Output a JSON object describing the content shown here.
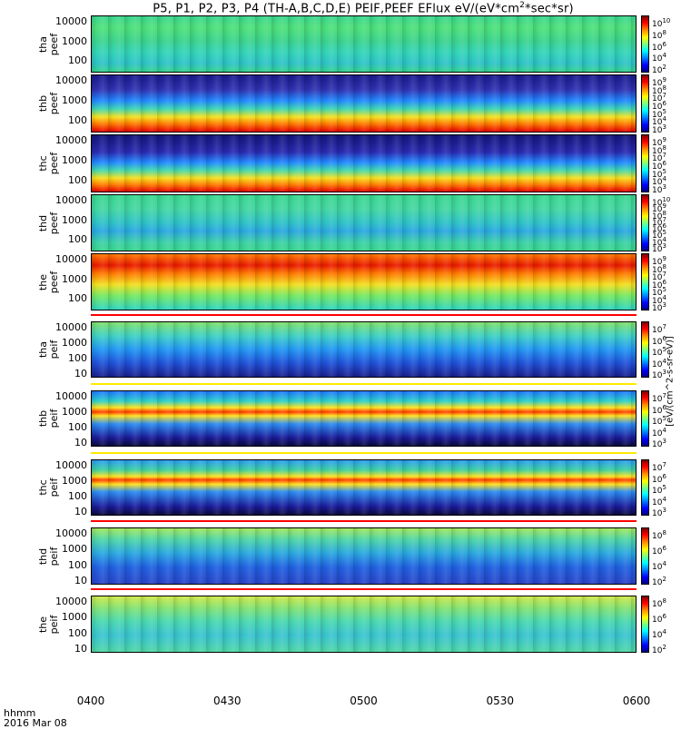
{
  "chart_data": {
    "type": "heatmap",
    "title": "P5, P1, P2, P3, P4 (TH-A,B,C,D,E) PEIF,PEEF EFlux eV/(eV*cm",
    "title_sup": "2",
    "title_tail": "*sec*sr)",
    "x_ticks": [
      "0400",
      "0430",
      "0500",
      "0530",
      "0600"
    ],
    "x_tick_values": [
      0,
      30,
      60,
      90,
      120
    ],
    "x_info_line1": "hhmm",
    "x_info_line2": "2016 Mar 08",
    "colorbar_unit_label": "[eV/(cm^2-s-sr-eV)]",
    "panels": [
      {
        "line1": "tha",
        "line2": "peef",
        "yticks": [
          "10000",
          "1000",
          "100"
        ],
        "cbar_ticks": [
          "10^10",
          "10^8",
          "10^6",
          "10^4",
          "10^2"
        ]
      },
      {
        "line1": "thb",
        "line2": "peef",
        "yticks": [
          "10000",
          "1000",
          "100"
        ],
        "cbar_ticks": [
          "10^9",
          "10^8",
          "10^7",
          "10^6",
          "10^5",
          "10^4",
          "10^3"
        ]
      },
      {
        "line1": "thc",
        "line2": "peef",
        "yticks": [
          "10000",
          "1000",
          "100"
        ],
        "cbar_ticks": [
          "10^9",
          "10^8",
          "10^7",
          "10^6",
          "10^5",
          "10^4",
          "10^3"
        ]
      },
      {
        "line1": "thd",
        "line2": "peef",
        "yticks": [
          "10000",
          "1000",
          "100"
        ],
        "cbar_ticks": [
          "10^10",
          "10^9",
          "10^8",
          "10^7",
          "10^6",
          "10^5",
          "10^4",
          "10^3"
        ]
      },
      {
        "line1": "the",
        "line2": "peef",
        "yticks": [
          "10000",
          "1000",
          "100"
        ],
        "cbar_ticks": [
          "10^9",
          "10^8",
          "10^7",
          "10^6",
          "10^5",
          "10^4",
          "10^3"
        ]
      },
      {
        "line1": "tha",
        "line2": "peif",
        "yticks": [
          "10000",
          "1000",
          "100",
          "10"
        ],
        "cbar_ticks": [
          "10^7",
          "10^6",
          "10^5",
          "10^4",
          "10^3"
        ]
      },
      {
        "line1": "thb",
        "line2": "peif",
        "yticks": [
          "10000",
          "1000",
          "100",
          "10"
        ],
        "cbar_ticks": [
          "10^7",
          "10^6",
          "10^5",
          "10^4",
          "10^3"
        ]
      },
      {
        "line1": "thc",
        "line2": "peif",
        "yticks": [
          "10000",
          "1000",
          "100",
          "10"
        ],
        "cbar_ticks": [
          "10^7",
          "10^6",
          "10^5",
          "10^4",
          "10^3"
        ]
      },
      {
        "line1": "thd",
        "line2": "peif",
        "yticks": [
          "10000",
          "1000",
          "100",
          "10"
        ],
        "cbar_ticks": [
          "10^8",
          "10^6",
          "10^4",
          "10^2"
        ]
      },
      {
        "line1": "the",
        "line2": "peif",
        "yticks": [
          "10000",
          "1000",
          "100",
          "10"
        ],
        "cbar_ticks": [
          "10^8",
          "10^6",
          "10^4",
          "10^2"
        ]
      }
    ]
  }
}
